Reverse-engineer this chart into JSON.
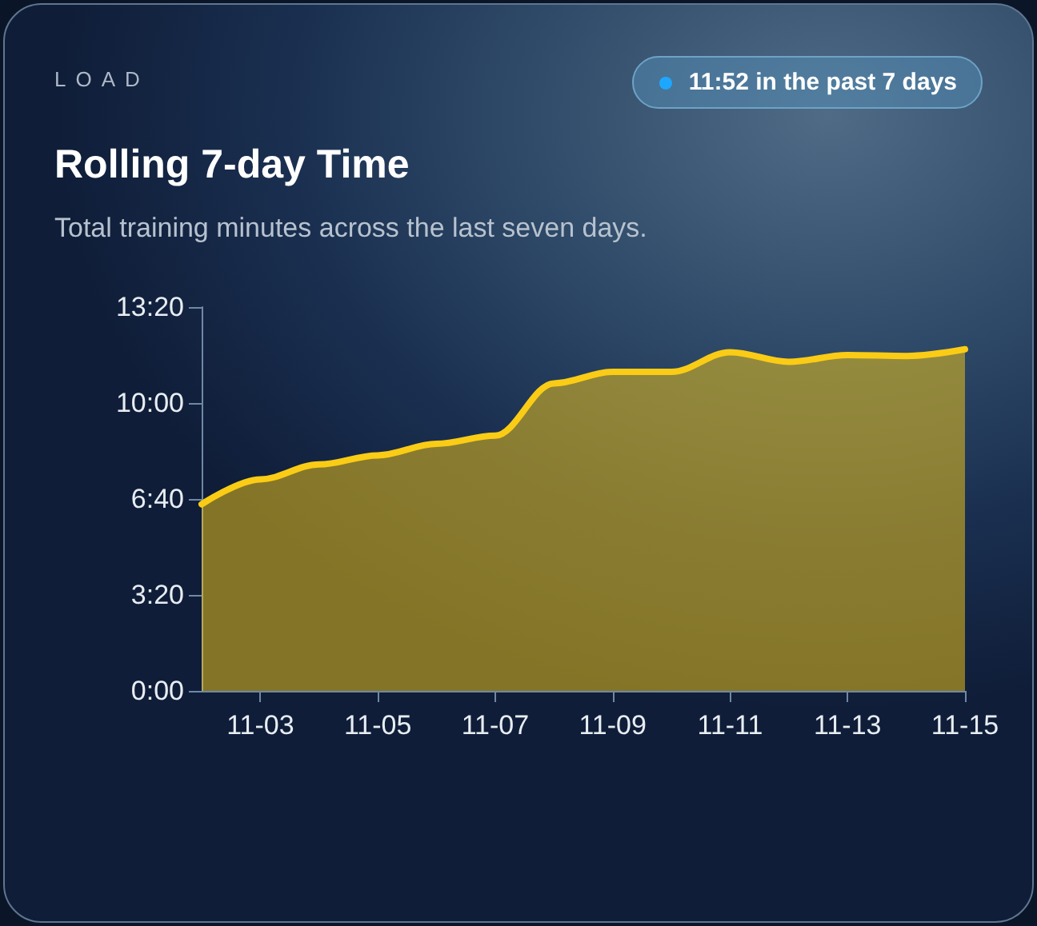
{
  "chart_data": {
    "type": "area",
    "title": "Rolling 7-day Time",
    "subtitle": "Total training minutes across the last seven days.",
    "annotations": [
      "LOAD",
      "11:52 in the past 7 days"
    ],
    "x": [
      "--11-02",
      "--11-03",
      "--11-04",
      "--11-05",
      "--11-06",
      "--11-07",
      "--11-08",
      "--11-09",
      "--11-10",
      "--11-11",
      "--11-12",
      "--11-13",
      "--11-14",
      "--11-15"
    ],
    "values": [
      389,
      441,
      472,
      491,
      515,
      532,
      641,
      665,
      665,
      706,
      686,
      700,
      698,
      712
    ],
    "color": "#facc15",
    "xlim": [
      "--11-02",
      "--11-15"
    ],
    "xticks": [
      {
        "value": "--11-03",
        "label": "11-03"
      },
      {
        "value": "--11-05",
        "label": "11-05"
      },
      {
        "value": "--11-07",
        "label": "11-07"
      },
      {
        "value": "--11-09",
        "label": "11-09"
      },
      {
        "value": "--11-11",
        "label": "11-11"
      },
      {
        "value": "--11-13",
        "label": "11-13"
      },
      {
        "value": "--11-15",
        "label": "11-15"
      }
    ],
    "ylim": [
      0,
      800
    ],
    "yticks": [
      {
        "value": 0,
        "label": "0:00"
      },
      {
        "value": 200,
        "label": "3:20"
      },
      {
        "value": 400,
        "label": "6:40"
      },
      {
        "value": 600,
        "label": "10:00"
      },
      {
        "value": 800,
        "label": "13:20"
      }
    ],
    "grid": false,
    "line_style": "solid"
  }
}
